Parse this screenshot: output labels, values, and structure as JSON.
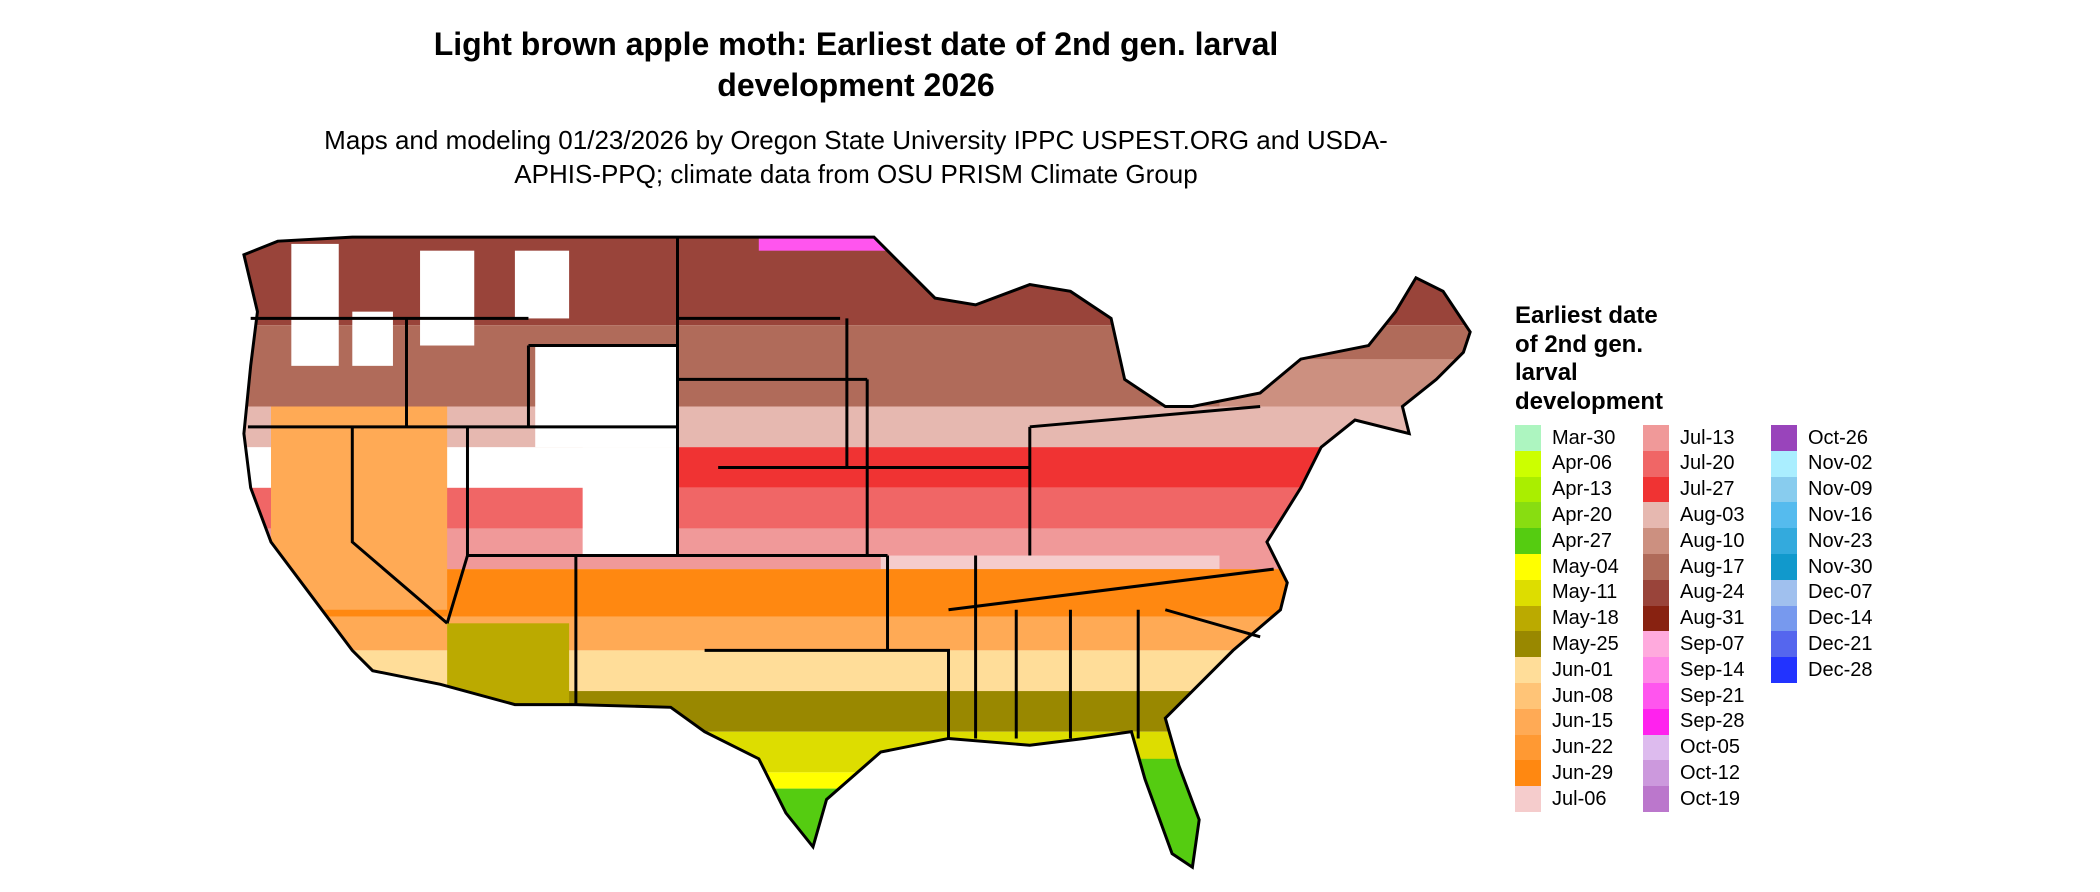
{
  "title": "Light brown apple moth: Earliest date of 2nd gen. larval development 2026",
  "subtitle": "Maps and modeling 01/23/2026 by Oregon State University IPPC USPEST.ORG and USDA-APHIS-PPQ; climate data from OSU PRISM Climate Group",
  "legend": {
    "title": "Earliest date of 2nd gen. larval development",
    "items": [
      {
        "label": "Mar-30",
        "color": "#adf5c0"
      },
      {
        "label": "Apr-06",
        "color": "#ccff00"
      },
      {
        "label": "Apr-13",
        "color": "#aaee00"
      },
      {
        "label": "Apr-20",
        "color": "#88dd11"
      },
      {
        "label": "Apr-27",
        "color": "#55cc11"
      },
      {
        "label": "May-04",
        "color": "#ffff00"
      },
      {
        "label": "May-11",
        "color": "#dddd00"
      },
      {
        "label": "May-18",
        "color": "#bbaa00"
      },
      {
        "label": "May-25",
        "color": "#998800"
      },
      {
        "label": "Jun-01",
        "color": "#ffdd99"
      },
      {
        "label": "Jun-08",
        "color": "#ffc477"
      },
      {
        "label": "Jun-15",
        "color": "#ffaa55"
      },
      {
        "label": "Jun-22",
        "color": "#ff9933"
      },
      {
        "label": "Jun-29",
        "color": "#ff8811"
      },
      {
        "label": "Jul-06",
        "color": "#f5cccc"
      },
      {
        "label": "Jul-13",
        "color": "#f09999"
      },
      {
        "label": "Jul-20",
        "color": "#f06666"
      },
      {
        "label": "Jul-27",
        "color": "#f03333"
      },
      {
        "label": "Aug-03",
        "color": "#e6b8b0"
      },
      {
        "label": "Aug-10",
        "color": "#cc9080"
      },
      {
        "label": "Aug-17",
        "color": "#b06b5a"
      },
      {
        "label": "Aug-24",
        "color": "#99443a"
      },
      {
        "label": "Aug-31",
        "color": "#882211"
      },
      {
        "label": "Sep-07",
        "color": "#ffaadd"
      },
      {
        "label": "Sep-14",
        "color": "#ff88e6"
      },
      {
        "label": "Sep-21",
        "color": "#ff55ee"
      },
      {
        "label": "Sep-28",
        "color": "#ff22ee"
      },
      {
        "label": "Oct-05",
        "color": "#ddbbee"
      },
      {
        "label": "Oct-12",
        "color": "#cc99dd"
      },
      {
        "label": "Oct-19",
        "color": "#bb77cc"
      },
      {
        "label": "Oct-26",
        "color": "#9944bb"
      },
      {
        "label": "Nov-02",
        "color": "#aaeeff"
      },
      {
        "label": "Nov-09",
        "color": "#88ccee"
      },
      {
        "label": "Nov-16",
        "color": "#55bbee"
      },
      {
        "label": "Nov-23",
        "color": "#33aadd"
      },
      {
        "label": "Nov-30",
        "color": "#1199cc"
      },
      {
        "label": "Dec-07",
        "color": "#a0c0ee"
      },
      {
        "label": "Dec-14",
        "color": "#7799ee"
      },
      {
        "label": "Dec-21",
        "color": "#5566ee"
      },
      {
        "label": "Dec-28",
        "color": "#2233ff"
      }
    ]
  }
}
